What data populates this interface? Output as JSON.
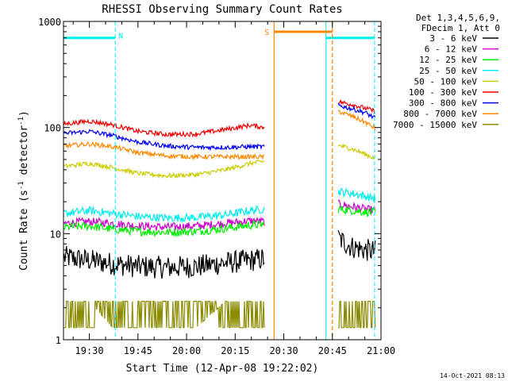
{
  "chart_data": {
    "type": "line",
    "title": "RHESSI Observing Summary Count Rates",
    "xlabel": "Start Time (12-Apr-08 19:22:02)",
    "ylabel": "Count Rate (s",
    "ylabel_sup1": "-1",
    "ylabel_mid": " detector",
    "ylabel_sup2": "-1",
    "ylabel_end": ")",
    "y_scale": "log",
    "ylim": [
      1,
      1000
    ],
    "xlim_minutes": [
      19.367,
      21.0
    ],
    "y_ticks": [
      {
        "value": 1,
        "label": "1"
      },
      {
        "value": 10,
        "label": "10"
      },
      {
        "value": 100,
        "label": "100"
      },
      {
        "value": 1000,
        "label": "1000"
      }
    ],
    "x_ticks": [
      {
        "hour": 19,
        "min": 30,
        "label": "19:30"
      },
      {
        "hour": 19,
        "min": 45,
        "label": "19:45"
      },
      {
        "hour": 20,
        "min": 0,
        "label": "20:00"
      },
      {
        "hour": 20,
        "min": 15,
        "label": "20:15"
      },
      {
        "hour": 20,
        "min": 30,
        "label": "20:30"
      },
      {
        "hour": 20,
        "min": 45,
        "label": "20:45"
      },
      {
        "hour": 21,
        "min": 0,
        "label": "21:00"
      }
    ],
    "legend_header": [
      "Det 1,3,4,5,6,9,",
      "FDecim 1, Att 0"
    ],
    "legend_position": "right",
    "series": [
      {
        "name": "3 - 6 keV",
        "color": "#000000",
        "seg1": [
          [
            19.37,
            6.0
          ],
          [
            19.5,
            5.6
          ],
          [
            19.62,
            5.2
          ],
          [
            19.75,
            4.9
          ],
          [
            19.9,
            4.8
          ],
          [
            20.05,
            4.9
          ],
          [
            20.2,
            5.3
          ],
          [
            20.33,
            5.6
          ],
          [
            20.4,
            5.8
          ]
        ],
        "seg2": [
          [
            20.78,
            9.0
          ],
          [
            20.85,
            7.5
          ],
          [
            20.92,
            7.0
          ],
          [
            20.97,
            6.8
          ]
        ]
      },
      {
        "name": "6 - 12 keV",
        "color": "#cc00cc",
        "seg1": [
          [
            19.37,
            12.5
          ],
          [
            19.5,
            13.0
          ],
          [
            19.62,
            12.5
          ],
          [
            19.75,
            11.8
          ],
          [
            19.9,
            11.5
          ],
          [
            20.05,
            11.8
          ],
          [
            20.2,
            12.5
          ],
          [
            20.33,
            13.2
          ],
          [
            20.4,
            13.0
          ]
        ],
        "seg2": [
          [
            20.78,
            19.0
          ],
          [
            20.85,
            18.0
          ],
          [
            20.92,
            17.0
          ],
          [
            20.97,
            16.5
          ]
        ]
      },
      {
        "name": "12 - 25 keV",
        "color": "#00ee00",
        "seg1": [
          [
            19.37,
            11.5
          ],
          [
            19.5,
            11.8
          ],
          [
            19.62,
            11.0
          ],
          [
            19.75,
            10.5
          ],
          [
            19.9,
            10.3
          ],
          [
            20.05,
            10.5
          ],
          [
            20.2,
            11.2
          ],
          [
            20.33,
            12.0
          ],
          [
            20.4,
            12.2
          ]
        ],
        "seg2": [
          [
            20.78,
            17.0
          ],
          [
            20.85,
            16.5
          ],
          [
            20.92,
            16.0
          ],
          [
            20.97,
            15.8
          ]
        ]
      },
      {
        "name": "25 - 50 keV",
        "color": "#00eeee",
        "seg1": [
          [
            19.37,
            15.5
          ],
          [
            19.5,
            16.5
          ],
          [
            19.62,
            15.5
          ],
          [
            19.75,
            14.5
          ],
          [
            19.9,
            14.0
          ],
          [
            20.05,
            14.2
          ],
          [
            20.2,
            15.0
          ],
          [
            20.33,
            16.5
          ],
          [
            20.4,
            17.0
          ]
        ],
        "seg2": [
          [
            20.78,
            25.0
          ],
          [
            20.85,
            24.0
          ],
          [
            20.92,
            22.5
          ],
          [
            20.97,
            21.5
          ]
        ]
      },
      {
        "name": "50 - 100 keV",
        "color": "#cccc00",
        "seg1": [
          [
            19.37,
            43
          ],
          [
            19.5,
            46
          ],
          [
            19.62,
            42
          ],
          [
            19.75,
            37
          ],
          [
            19.9,
            35
          ],
          [
            20.05,
            36
          ],
          [
            20.2,
            40
          ],
          [
            20.33,
            46
          ],
          [
            20.4,
            48
          ]
        ],
        "seg2": [
          [
            20.78,
            68
          ],
          [
            20.85,
            63
          ],
          [
            20.92,
            56
          ],
          [
            20.97,
            51
          ]
        ]
      },
      {
        "name": "100 - 300 keV",
        "color": "#ee0000",
        "seg1": [
          [
            19.37,
            108
          ],
          [
            19.5,
            115
          ],
          [
            19.62,
            106
          ],
          [
            19.75,
            92
          ],
          [
            19.9,
            86
          ],
          [
            20.05,
            87
          ],
          [
            20.2,
            96
          ],
          [
            20.33,
            105
          ],
          [
            20.4,
            100
          ]
        ],
        "seg2": [
          [
            20.78,
            175
          ],
          [
            20.85,
            165
          ],
          [
            20.92,
            152
          ],
          [
            20.97,
            142
          ]
        ]
      },
      {
        "name": "300 - 800 keV",
        "color": "#0000ee",
        "seg1": [
          [
            19.37,
            88
          ],
          [
            19.5,
            92
          ],
          [
            19.62,
            84
          ],
          [
            19.75,
            73
          ],
          [
            19.9,
            67
          ],
          [
            20.05,
            65
          ],
          [
            20.2,
            65
          ],
          [
            20.33,
            66
          ],
          [
            20.4,
            66
          ]
        ],
        "seg2": [
          [
            20.78,
            162
          ],
          [
            20.85,
            150
          ],
          [
            20.92,
            138
          ],
          [
            20.97,
            122
          ]
        ]
      },
      {
        "name": "800 - 7000 keV",
        "color": "#ff8800",
        "seg1": [
          [
            19.37,
            67
          ],
          [
            19.5,
            70
          ],
          [
            19.62,
            66
          ],
          [
            19.75,
            58
          ],
          [
            19.9,
            54
          ],
          [
            20.05,
            53
          ],
          [
            20.2,
            53
          ],
          [
            20.33,
            53
          ],
          [
            20.4,
            53
          ]
        ],
        "seg2": [
          [
            20.78,
            142
          ],
          [
            20.85,
            128
          ],
          [
            20.92,
            112
          ],
          [
            20.97,
            98
          ]
        ]
      },
      {
        "name": "7000 - 15000 keV",
        "color": "#8b8b00",
        "seg1": [
          [
            19.37,
            2.3
          ],
          [
            19.5,
            2.3
          ],
          [
            19.62,
            1.3
          ],
          [
            19.75,
            1.3
          ],
          [
            19.9,
            1.3
          ],
          [
            20.05,
            1.3
          ],
          [
            20.2,
            2.3
          ],
          [
            20.33,
            2.3
          ],
          [
            20.4,
            2.3
          ]
        ],
        "seg2": [
          [
            20.78,
            1.3
          ],
          [
            20.85,
            1.3
          ],
          [
            20.92,
            1.3
          ],
          [
            20.97,
            1.3
          ]
        ]
      }
    ],
    "annotations": [
      {
        "type": "N",
        "label": "N",
        "color": "#00eeee",
        "x_start": 19.367,
        "x_end": 19.633,
        "x_end2": 20.717,
        "x_end3": 20.967,
        "y": 700
      },
      {
        "type": "S",
        "label": "S",
        "color": "#ff8800",
        "x_start": 20.45,
        "x_end": 20.75,
        "y": 800
      }
    ],
    "footer_date": "14-Oct-2021 08:13"
  }
}
